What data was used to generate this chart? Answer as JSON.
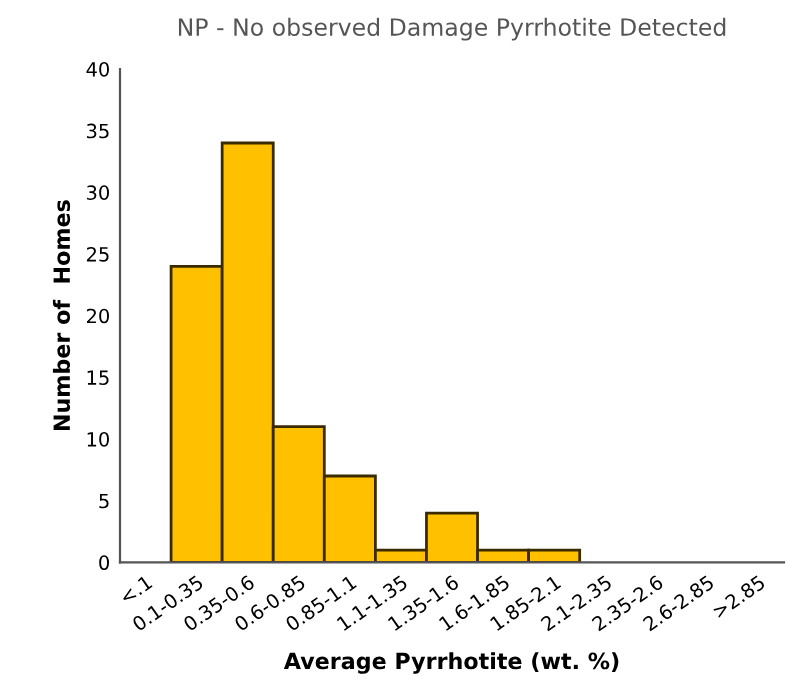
{
  "chart_data": {
    "type": "bar",
    "title": "NP - No observed Damage Pyrrhotite Detected",
    "xlabel": "Average Pyrrhotite (wt. %)",
    "ylabel": "Number of  Homes",
    "categories": [
      "<.1",
      "0.1-0.35",
      "0.35-0.6",
      "0.6-0.85",
      "0.85-1.1",
      "1.1-1.35",
      "1.35-1.6",
      "1.6-1.85",
      "1.85-2.1",
      "2.1-2.35",
      "2.35-2.6",
      "2.6-2.85",
      ">2.85"
    ],
    "values": [
      0,
      24,
      34,
      11,
      7,
      1,
      4,
      1,
      1,
      0,
      0,
      0,
      0
    ],
    "color": "#ffc000",
    "ylim": [
      0,
      40
    ],
    "yticks": [
      0,
      5,
      10,
      15,
      20,
      25,
      30,
      35,
      40
    ],
    "grid": false
  }
}
